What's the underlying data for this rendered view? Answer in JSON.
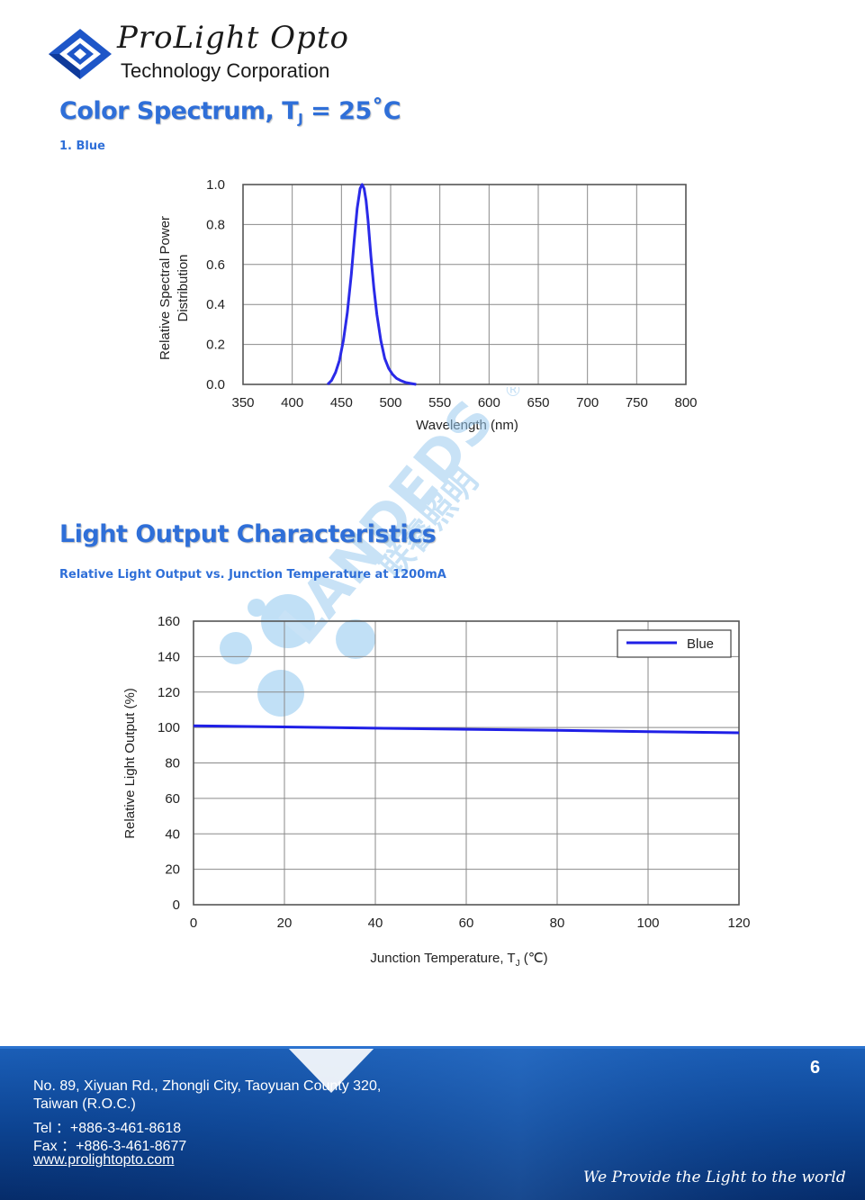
{
  "header": {
    "brand_name": "ProLight Opto",
    "brand_subtitle": "Technology Corporation"
  },
  "section_spectrum": {
    "title_main": "Color Spectrum, T",
    "title_sub": "J",
    "title_end": " = 25˚C",
    "subtitle": "1. Blue"
  },
  "section_light_output": {
    "title": "Light Output Characteristics",
    "subtitle": "Relative Light Output vs. Junction Temperature at 1200mA"
  },
  "chart_data": [
    {
      "type": "line",
      "xlabel": "Wavelength (nm)",
      "ylabel_line1": "Relative Spectral Power",
      "ylabel_line2": "Distribution",
      "xlim": [
        350,
        800
      ],
      "ylim": [
        0,
        1.0
      ],
      "x_ticks": [
        "350",
        "400",
        "450",
        "500",
        "550",
        "600",
        "650",
        "700",
        "750",
        "800"
      ],
      "y_ticks": [
        "0.0",
        "0.2",
        "0.4",
        "0.6",
        "0.8",
        "1.0"
      ],
      "grid": true,
      "series": [
        {
          "color": "#2a2ae8",
          "x": [
            436,
            440,
            444,
            448,
            452,
            456,
            460,
            463,
            466,
            469,
            471,
            473,
            475,
            477,
            480,
            483,
            486,
            490,
            494,
            498,
            502,
            506,
            510,
            515,
            520,
            526
          ],
          "y": [
            0.0,
            0.02,
            0.06,
            0.12,
            0.22,
            0.36,
            0.55,
            0.72,
            0.88,
            0.98,
            1.0,
            0.98,
            0.92,
            0.82,
            0.64,
            0.48,
            0.35,
            0.22,
            0.13,
            0.08,
            0.05,
            0.03,
            0.02,
            0.01,
            0.005,
            0.0
          ]
        }
      ]
    },
    {
      "type": "line",
      "xlabel_main": "Junction Temperature, T",
      "xlabel_sub": "J",
      "xlabel_end": " (℃)",
      "ylabel": "Relative Light Output (%)",
      "xlim": [
        0,
        120
      ],
      "ylim": [
        0,
        160
      ],
      "x_ticks": [
        "0",
        "20",
        "40",
        "60",
        "80",
        "100",
        "120"
      ],
      "y_ticks": [
        "0",
        "20",
        "40",
        "60",
        "80",
        "100",
        "120",
        "140",
        "160"
      ],
      "grid": true,
      "legend": "top-right",
      "series": [
        {
          "name": "Blue",
          "color": "#1f1fe6",
          "x": [
            0,
            20,
            40,
            60,
            80,
            100,
            120
          ],
          "y": [
            101,
            100.3,
            99.6,
            99,
            98.4,
            97.7,
            97
          ]
        }
      ]
    }
  ],
  "footer": {
    "address_line1": "No. 89, Xiyuan Rd., Zhongli City, Taoyuan County 320,",
    "address_line2": "Taiwan (R.O.C.)",
    "tel": "Tel  ：+886-3-461-8618",
    "fax": "Fax  ：+886-3-461-8677",
    "website": "www.prolightopto.com",
    "page_number": "6",
    "slogan": "We Provide the Light to the world"
  },
  "watermark": {
    "text_latin": "LANDEDS",
    "text_cjk": "联睿照明",
    "mark": "®"
  },
  "colors": {
    "heading_blue": "#2f6fd8",
    "footer_blue": "#0b3f8f",
    "spectrum_line": "#2a2ae8",
    "output_line": "#1f1fe6"
  }
}
